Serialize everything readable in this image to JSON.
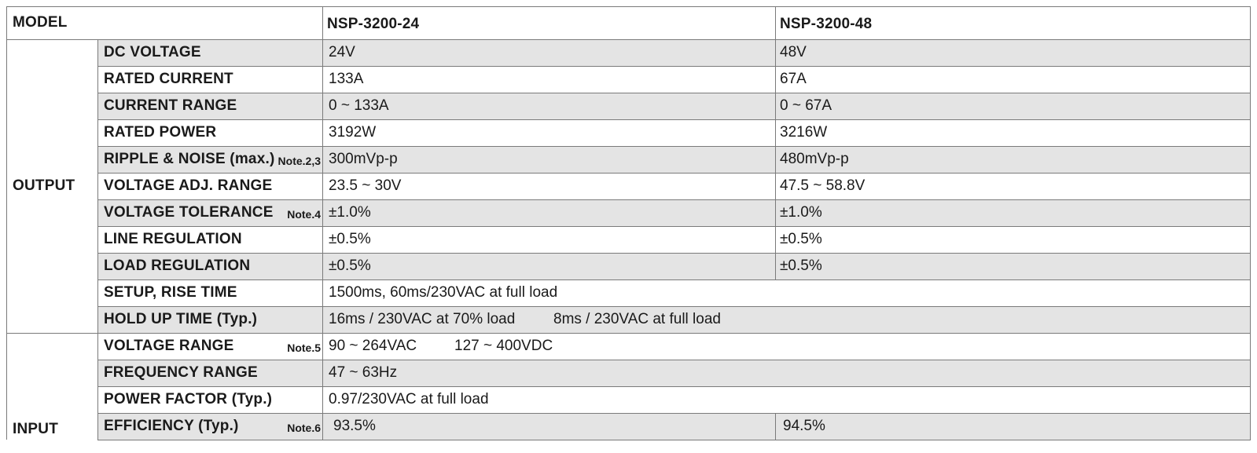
{
  "header": {
    "model_label": "MODEL",
    "models": [
      "NSP-3200-24",
      "NSP-3200-48"
    ]
  },
  "groups": {
    "output": "OUTPUT",
    "input": "INPUT"
  },
  "rows": [
    {
      "label": "DC VOLTAGE",
      "note": "",
      "v1": "24V",
      "v2": "48V",
      "extra": ""
    },
    {
      "label": "RATED CURRENT",
      "note": "",
      "v1": "133A",
      "v2": "67A",
      "extra": ""
    },
    {
      "label": "CURRENT RANGE",
      "note": "",
      "v1": "0 ~ 133A",
      "v2": "0 ~ 67A",
      "extra": ""
    },
    {
      "label": "RATED POWER",
      "note": "",
      "v1": "3192W",
      "v2": "3216W",
      "extra": ""
    },
    {
      "label": "RIPPLE & NOISE (max.)",
      "note": "Note.2,3",
      "v1": "300mVp-p",
      "v2": "480mVp-p",
      "extra": ""
    },
    {
      "label": "VOLTAGE ADJ. RANGE",
      "note": "",
      "v1": "23.5 ~ 30V",
      "v2": "47.5 ~ 58.8V",
      "extra": ""
    },
    {
      "label": "VOLTAGE TOLERANCE",
      "note": "Note.4",
      "v1": "±1.0%",
      "v2": "±1.0%",
      "extra": ""
    },
    {
      "label": "LINE REGULATION",
      "note": "",
      "v1": "±0.5%",
      "v2": "±0.5%",
      "extra": ""
    },
    {
      "label": "LOAD REGULATION",
      "note": "",
      "v1": "±0.5%",
      "v2": "±0.5%",
      "extra": ""
    },
    {
      "label": "SETUP, RISE TIME",
      "note": "",
      "v1": "1500ms, 60ms/230VAC at full load",
      "v2": "",
      "extra": ""
    },
    {
      "label": "HOLD UP TIME (Typ.)",
      "note": "",
      "v1": "16ms / 230VAC at 70% load",
      "v2": "",
      "extra": "8ms / 230VAC at full load"
    },
    {
      "label": "VOLTAGE RANGE",
      "note": "Note.5",
      "v1": "90 ~ 264VAC",
      "v2": "",
      "extra": "127 ~ 400VDC"
    },
    {
      "label": "FREQUENCY RANGE",
      "note": "",
      "v1": "47 ~ 63Hz",
      "v2": "",
      "extra": ""
    },
    {
      "label": "POWER FACTOR (Typ.)",
      "note": "",
      "v1": "0.97/230VAC at full load",
      "v2": "",
      "extra": ""
    },
    {
      "label": "EFFICIENCY (Typ.)",
      "note": "Note.6",
      "v1": "93.5%",
      "v2": "94.5%",
      "extra": ""
    }
  ]
}
